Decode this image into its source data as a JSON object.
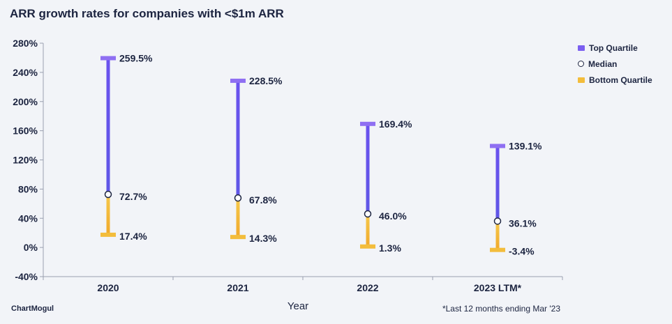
{
  "title": "ARR growth rates for companies with <$1m ARR",
  "brand": "ChartMogul",
  "footnote": "*Last 12 months ending Mar '23",
  "chart_data": {
    "type": "range",
    "title": "ARR growth rates for companies with <$1m ARR",
    "xlabel": "Year",
    "ylabel": "",
    "ylim": [
      -40,
      280
    ],
    "yticks": [
      280,
      240,
      200,
      160,
      120,
      80,
      40,
      0,
      -40
    ],
    "ytick_labels": [
      "280%",
      "240%",
      "200%",
      "160%",
      "120%",
      "80%",
      "40%",
      "0%",
      "-40%"
    ],
    "categories": [
      "2020",
      "2021",
      "2022",
      "2023 LTM*"
    ],
    "series": [
      {
        "name": "Top Quartile",
        "values": [
          259.5,
          228.5,
          169.4,
          139.1
        ],
        "labels": [
          "259.5%",
          "228.5%",
          "169.4%",
          "139.1%"
        ]
      },
      {
        "name": "Median",
        "values": [
          72.7,
          67.8,
          46.0,
          36.1
        ],
        "labels": [
          "72.7%",
          "67.8%",
          "46.0%",
          "36.1%"
        ]
      },
      {
        "name": "Bottom Quartile",
        "values": [
          17.4,
          14.3,
          1.3,
          -3.4
        ],
        "labels": [
          "17.4%",
          "14.3%",
          "1.3%",
          "-3.4%"
        ]
      }
    ],
    "legend_position": "right",
    "grid": false
  },
  "legend": [
    {
      "label": "Top Quartile",
      "shape": "bar"
    },
    {
      "label": "Median",
      "shape": "circle"
    },
    {
      "label": "Bottom Quartile",
      "shape": "bar"
    }
  ],
  "colors": {
    "top": "#7b5ff0",
    "top_light": "#8f6ff2",
    "mid_dark": "#4b55d8",
    "bottom": "#f3bd3c",
    "bottom_dark": "#eea62a",
    "text": "#1c2440"
  }
}
